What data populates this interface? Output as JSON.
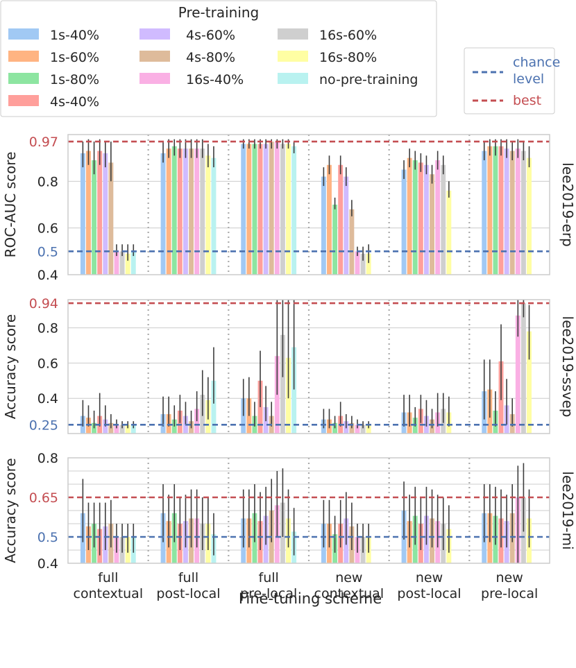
{
  "chart_data": {
    "type": "bar",
    "figure": {
      "xlabel": "Fine-tuning scheme",
      "categories": [
        {
          "line1": "full",
          "line2": "contextual"
        },
        {
          "line1": "full",
          "line2": "post-local"
        },
        {
          "line1": "full",
          "line2": "pre-local"
        },
        {
          "line1": "new",
          "line2": "contextual"
        },
        {
          "line1": "new",
          "line2": "post-local"
        },
        {
          "line1": "new",
          "line2": "pre-local"
        }
      ]
    },
    "legend": {
      "title": "Pre-training",
      "location": "top-left",
      "entries": [
        {
          "name": "1s-40%",
          "color": "#a1c9f4"
        },
        {
          "name": "1s-60%",
          "color": "#ffb482"
        },
        {
          "name": "1s-80%",
          "color": "#8de5a1"
        },
        {
          "name": "4s-40%",
          "color": "#ff9f9b"
        },
        {
          "name": "4s-60%",
          "color": "#d0bbff"
        },
        {
          "name": "4s-80%",
          "color": "#debb9b"
        },
        {
          "name": "16s-40%",
          "color": "#fab0e4"
        },
        {
          "name": "16s-60%",
          "color": "#cfcfcf"
        },
        {
          "name": "16s-80%",
          "color": "#fffea3"
        },
        {
          "name": "no-pre-training",
          "color": "#b9f2f0"
        }
      ]
    },
    "reference_legend": {
      "location": "top-right",
      "entries": [
        {
          "label1": "chance",
          "label2": "level",
          "color": "#4c72b0"
        },
        {
          "label1": "best",
          "label2": "",
          "color": "#c44e52"
        }
      ]
    },
    "panels": [
      {
        "name": "lee2019-erp",
        "ylabel": "ROC-AUC score",
        "ylim": [
          0.4,
          1.0
        ],
        "ticks": [
          "0.4",
          "0.5",
          "0.6",
          "0.8",
          "0.97"
        ],
        "tick_values": [
          0.4,
          0.5,
          0.6,
          0.8,
          0.97
        ],
        "gridlines": [
          0.4,
          0.6,
          0.8
        ],
        "chance": 0.5,
        "best": 0.97,
        "values": [
          [
            0.92,
            0.93,
            0.89,
            0.93,
            0.92,
            0.88,
            0.5,
            0.5,
            0.49,
            0.5
          ],
          [
            0.92,
            0.94,
            0.95,
            0.94,
            0.94,
            0.94,
            0.94,
            0.94,
            0.91,
            0.9
          ],
          [
            0.96,
            0.96,
            0.96,
            0.96,
            0.96,
            0.97,
            0.97,
            0.96,
            0.96,
            0.95
          ],
          [
            0.82,
            0.87,
            0.7,
            0.87,
            0.82,
            0.68,
            0.5,
            0.49,
            0.49,
            0.0
          ],
          [
            0.85,
            0.9,
            0.89,
            0.88,
            0.87,
            0.83,
            0.89,
            0.87,
            0.76,
            0.0
          ],
          [
            0.93,
            0.95,
            0.95,
            0.95,
            0.94,
            0.93,
            0.94,
            0.93,
            0.9,
            0.0
          ]
        ],
        "err_low": [
          [
            0.86,
            0.87,
            0.83,
            0.87,
            0.86,
            0.8,
            0.48,
            0.48,
            0.46,
            0.48
          ],
          [
            0.88,
            0.9,
            0.91,
            0.9,
            0.9,
            0.9,
            0.9,
            0.9,
            0.86,
            0.86
          ],
          [
            0.94,
            0.94,
            0.94,
            0.94,
            0.94,
            0.94,
            0.94,
            0.94,
            0.94,
            0.92
          ],
          [
            0.78,
            0.83,
            0.68,
            0.83,
            0.78,
            0.65,
            0.48,
            0.46,
            0.45,
            0.0
          ],
          [
            0.81,
            0.86,
            0.85,
            0.84,
            0.83,
            0.79,
            0.85,
            0.83,
            0.73,
            0.0
          ],
          [
            0.89,
            0.91,
            0.91,
            0.91,
            0.9,
            0.89,
            0.9,
            0.89,
            0.86,
            0.0
          ]
        ],
        "err_high": [
          [
            0.97,
            0.98,
            0.97,
            0.98,
            0.97,
            0.97,
            0.53,
            0.53,
            0.53,
            0.53
          ],
          [
            0.97,
            0.98,
            0.98,
            0.98,
            0.98,
            0.98,
            0.98,
            0.98,
            0.96,
            0.95
          ],
          [
            0.98,
            0.98,
            0.98,
            0.98,
            0.98,
            0.98,
            0.98,
            0.98,
            0.98,
            0.97
          ],
          [
            0.86,
            0.91,
            0.73,
            0.91,
            0.86,
            0.72,
            0.52,
            0.52,
            0.53,
            0.0
          ],
          [
            0.89,
            0.94,
            0.93,
            0.92,
            0.91,
            0.87,
            0.93,
            0.91,
            0.8,
            0.0
          ],
          [
            0.97,
            0.98,
            0.98,
            0.98,
            0.98,
            0.97,
            0.98,
            0.97,
            0.95,
            0.0
          ]
        ]
      },
      {
        "name": "lee2019-ssvep",
        "ylabel": "Accuracy score",
        "ylim": [
          0.2,
          0.96
        ],
        "ticks": [
          "0.25",
          "0.4",
          "0.6",
          "0.8",
          "0.94"
        ],
        "tick_values": [
          0.25,
          0.4,
          0.6,
          0.8,
          0.94
        ],
        "gridlines": [
          0.4,
          0.6,
          0.8
        ],
        "chance": 0.25,
        "best": 0.94,
        "values": [
          [
            0.3,
            0.29,
            0.26,
            0.3,
            0.28,
            0.26,
            0.25,
            0.25,
            0.25,
            0.25
          ],
          [
            0.31,
            0.31,
            0.28,
            0.33,
            0.3,
            0.27,
            0.34,
            0.42,
            0.39,
            0.5
          ],
          [
            0.4,
            0.4,
            0.3,
            0.5,
            0.35,
            0.3,
            0.64,
            0.76,
            0.63,
            0.69
          ],
          [
            0.28,
            0.28,
            0.26,
            0.3,
            0.27,
            0.26,
            0.25,
            0.25,
            0.25,
            0.0
          ],
          [
            0.32,
            0.32,
            0.29,
            0.34,
            0.3,
            0.28,
            0.32,
            0.34,
            0.32,
            0.0
          ],
          [
            0.44,
            0.45,
            0.33,
            0.61,
            0.36,
            0.31,
            0.87,
            0.94,
            0.78,
            0.0
          ]
        ],
        "err_low": [
          [
            0.24,
            0.24,
            0.23,
            0.24,
            0.24,
            0.23,
            0.23,
            0.23,
            0.23,
            0.23
          ],
          [
            0.24,
            0.24,
            0.24,
            0.26,
            0.25,
            0.23,
            0.27,
            0.3,
            0.28,
            0.37
          ],
          [
            0.3,
            0.3,
            0.24,
            0.35,
            0.27,
            0.24,
            0.42,
            0.52,
            0.4,
            0.45
          ],
          [
            0.23,
            0.23,
            0.23,
            0.24,
            0.23,
            0.23,
            0.23,
            0.23,
            0.23,
            0.0
          ],
          [
            0.24,
            0.24,
            0.24,
            0.26,
            0.24,
            0.23,
            0.24,
            0.26,
            0.24,
            0.0
          ],
          [
            0.28,
            0.29,
            0.24,
            0.39,
            0.25,
            0.24,
            0.75,
            0.86,
            0.62,
            0.0
          ]
        ],
        "err_high": [
          [
            0.39,
            0.36,
            0.33,
            0.43,
            0.36,
            0.31,
            0.28,
            0.27,
            0.27,
            0.27
          ],
          [
            0.41,
            0.41,
            0.36,
            0.42,
            0.38,
            0.33,
            0.44,
            0.56,
            0.52,
            0.69
          ],
          [
            0.51,
            0.52,
            0.38,
            0.67,
            0.47,
            0.38,
            0.99,
            0.99,
            0.99,
            0.99
          ],
          [
            0.34,
            0.34,
            0.3,
            0.38,
            0.31,
            0.3,
            0.28,
            0.27,
            0.27,
            0.0
          ],
          [
            0.42,
            0.42,
            0.35,
            0.42,
            0.39,
            0.34,
            0.43,
            0.43,
            0.41,
            0.0
          ],
          [
            0.62,
            0.62,
            0.44,
            0.82,
            0.51,
            0.4,
            0.99,
            0.99,
            0.93,
            0.0
          ]
        ]
      },
      {
        "name": "lee2019-mi",
        "ylabel": "Accuracy score",
        "ylim": [
          0.4,
          0.8
        ],
        "ticks": [
          "0.4",
          "0.5",
          "0.65",
          "0.8"
        ],
        "tick_values": [
          0.4,
          0.5,
          0.65,
          0.8
        ],
        "gridlines": [
          0.45,
          0.55,
          0.6,
          0.7,
          0.75
        ],
        "chance": 0.5,
        "best": 0.65,
        "values": [
          [
            0.59,
            0.54,
            0.55,
            0.53,
            0.54,
            0.55,
            0.5,
            0.5,
            0.5,
            0.5
          ],
          [
            0.59,
            0.56,
            0.59,
            0.55,
            0.56,
            0.57,
            0.57,
            0.55,
            0.55,
            0.51
          ],
          [
            0.57,
            0.57,
            0.59,
            0.56,
            0.58,
            0.6,
            0.62,
            0.63,
            0.57,
            0.52
          ],
          [
            0.55,
            0.55,
            0.51,
            0.55,
            0.57,
            0.54,
            0.5,
            0.5,
            0.5,
            0.0
          ],
          [
            0.6,
            0.56,
            0.58,
            0.55,
            0.58,
            0.57,
            0.56,
            0.55,
            0.53,
            0.0
          ],
          [
            0.59,
            0.59,
            0.58,
            0.57,
            0.56,
            0.59,
            0.65,
            0.65,
            0.57,
            0.0
          ]
        ],
        "err_low": [
          [
            0.48,
            0.45,
            0.46,
            0.43,
            0.45,
            0.46,
            0.44,
            0.44,
            0.44,
            0.44
          ],
          [
            0.48,
            0.46,
            0.48,
            0.45,
            0.46,
            0.46,
            0.46,
            0.45,
            0.45,
            0.43
          ],
          [
            0.46,
            0.46,
            0.48,
            0.45,
            0.47,
            0.48,
            0.5,
            0.5,
            0.46,
            0.43
          ],
          [
            0.46,
            0.46,
            0.44,
            0.46,
            0.47,
            0.45,
            0.44,
            0.44,
            0.44,
            0.0
          ],
          [
            0.49,
            0.46,
            0.47,
            0.45,
            0.47,
            0.46,
            0.46,
            0.45,
            0.44,
            0.0
          ],
          [
            0.48,
            0.48,
            0.47,
            0.46,
            0.46,
            0.48,
            0.4,
            0.52,
            0.46,
            0.0
          ]
        ],
        "err_high": [
          [
            0.72,
            0.63,
            0.63,
            0.63,
            0.63,
            0.64,
            0.55,
            0.55,
            0.55,
            0.55
          ],
          [
            0.7,
            0.66,
            0.7,
            0.65,
            0.66,
            0.68,
            0.68,
            0.65,
            0.65,
            0.59
          ],
          [
            0.68,
            0.68,
            0.7,
            0.67,
            0.69,
            0.72,
            0.75,
            0.76,
            0.68,
            0.61
          ],
          [
            0.64,
            0.64,
            0.58,
            0.64,
            0.67,
            0.63,
            0.55,
            0.55,
            0.55,
            0.0
          ],
          [
            0.71,
            0.66,
            0.69,
            0.65,
            0.69,
            0.68,
            0.66,
            0.65,
            0.62,
            0.0
          ],
          [
            0.7,
            0.7,
            0.69,
            0.68,
            0.66,
            0.7,
            0.77,
            0.78,
            0.68,
            0.0
          ]
        ]
      }
    ]
  }
}
